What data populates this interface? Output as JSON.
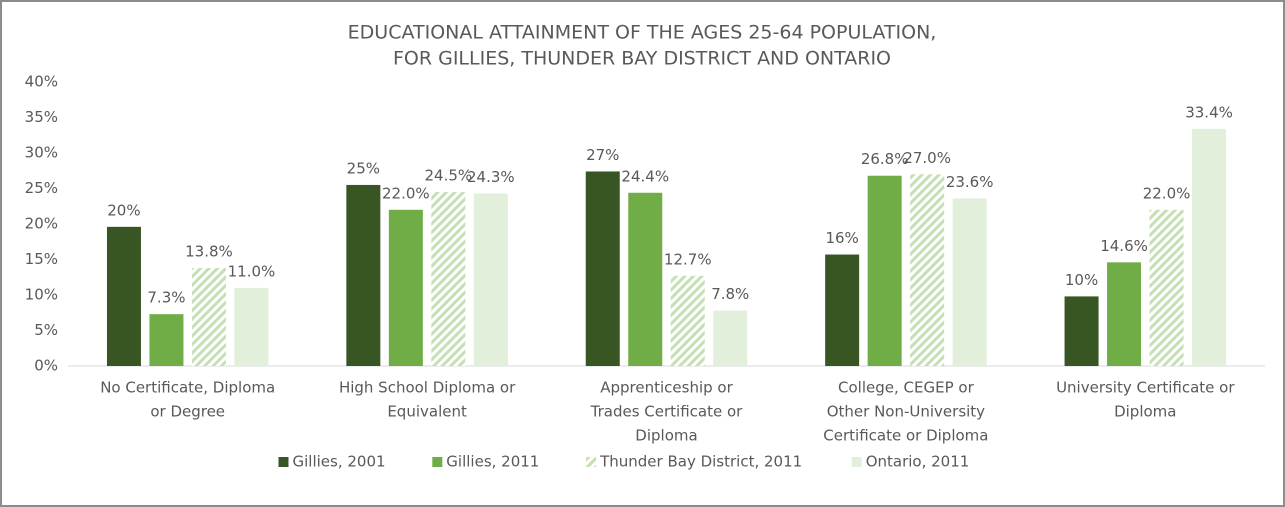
{
  "chart_data": {
    "type": "bar",
    "title": [
      "EDUCATIONAL ATTAINMENT OF THE AGES 25-64 POPULATION,",
      "FOR GILLIES, THUNDER BAY DISTRICT AND ONTARIO"
    ],
    "categories": [
      [
        "No Certificate, Diploma",
        "or Degree"
      ],
      [
        "High School Diploma or",
        "Equivalent"
      ],
      [
        "Apprenticeship or",
        "Trades Certificate or",
        "Diploma"
      ],
      [
        "College, CEGEP or",
        "Other Non-University",
        "Certificate or Diploma"
      ],
      [
        "University Certificate or",
        "Diploma"
      ]
    ],
    "series": [
      {
        "name": "Gillies, 2001",
        "color": "#375623",
        "values": [
          19.6,
          25.5,
          27.4,
          15.7,
          9.8
        ],
        "value_labels": [
          "20%",
          "25%",
          "27%",
          "16%",
          "10%"
        ]
      },
      {
        "name": "Gillies, 2011",
        "color": "#70ad47",
        "values": [
          7.3,
          22.0,
          24.4,
          26.8,
          14.6
        ],
        "value_labels": [
          "7.3%",
          "22.0%",
          "24.4%",
          "26.8%",
          "14.6%"
        ]
      },
      {
        "name": "Thunder Bay District, 2011",
        "color": "#c5e0b4",
        "hatch": true,
        "values": [
          13.8,
          24.5,
          12.7,
          27.0,
          22.0
        ],
        "value_labels": [
          "13.8%",
          "24.5%",
          "12.7%",
          "27.0%",
          "22.0%"
        ]
      },
      {
        "name": "Ontario, 2011",
        "color": "#e2efda",
        "values": [
          11.0,
          24.3,
          7.8,
          23.6,
          33.4
        ],
        "value_labels": [
          "11.0%",
          "24.3%",
          "7.8%",
          "23.6%",
          "33.4%"
        ]
      }
    ],
    "ylim": [
      0,
      40
    ],
    "yticks": [
      {
        "value": 0,
        "label": "0%"
      },
      {
        "value": 5,
        "label": "5%"
      },
      {
        "value": 10,
        "label": "10%"
      },
      {
        "value": 15,
        "label": "15%"
      },
      {
        "value": 20,
        "label": "20%"
      },
      {
        "value": 25,
        "label": "25%"
      },
      {
        "value": 30,
        "label": "30%"
      },
      {
        "value": 35,
        "label": "35%"
      },
      {
        "value": 40,
        "label": "40%"
      }
    ],
    "legend": "bottom"
  }
}
